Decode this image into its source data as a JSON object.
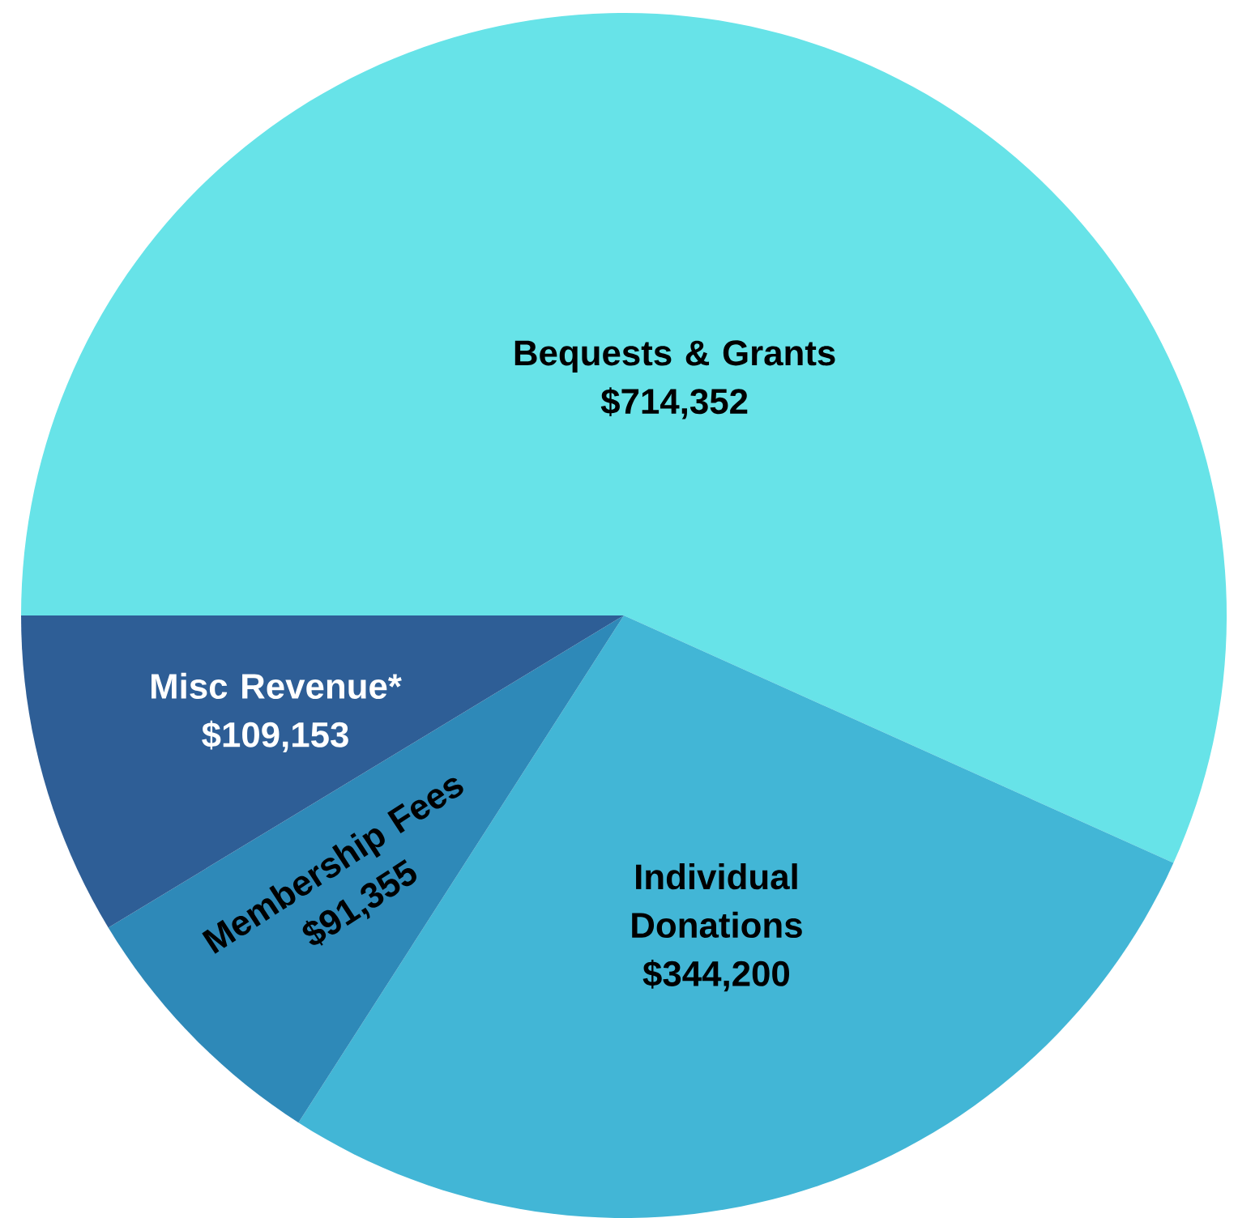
{
  "chart_data": {
    "type": "pie",
    "categories": [
      "Bequests & Grants",
      "Individual Donations",
      "Membership Fees",
      "Misc Revenue*"
    ],
    "values": [
      714352,
      344200,
      91355,
      109153
    ],
    "value_labels": [
      "$714,352",
      "$344,200",
      "$91,355",
      "$109,153"
    ],
    "colors": [
      "#67e3e8",
      "#42b6d6",
      "#2e89b8",
      "#2e5e96"
    ]
  }
}
